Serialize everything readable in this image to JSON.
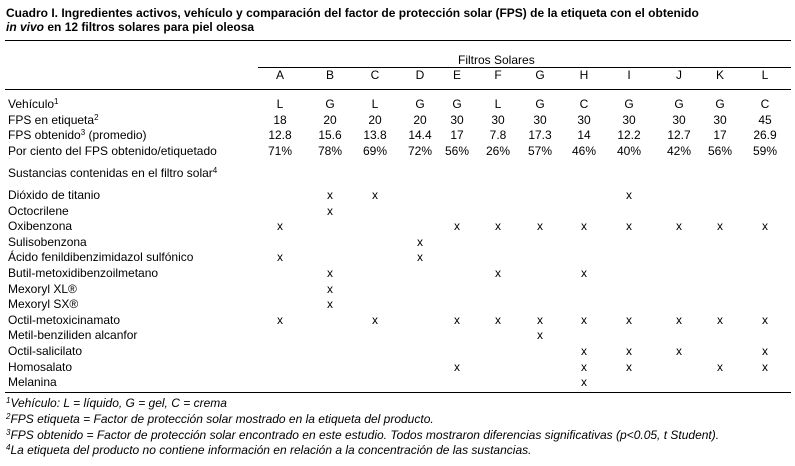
{
  "caption": {
    "line1": "Cuadro I. Ingredientes activos, vehículo y comparación del factor de protección solar (FPS) de la etiqueta con el obtenido",
    "line2_italic": "in vivo",
    "line2_rest": " en 12 filtros solares para piel oleosa"
  },
  "table": {
    "group_header": "Filtros Solares",
    "columns": [
      "A",
      "B",
      "C",
      "D",
      "E",
      "F",
      "G",
      "H",
      "I",
      "J",
      "K",
      "L"
    ],
    "data_rows": [
      {
        "label": "Vehículo",
        "sup": "1",
        "values": [
          "L",
          "G",
          "L",
          "G",
          "G",
          "L",
          "G",
          "C",
          "G",
          "G",
          "G",
          "C"
        ]
      },
      {
        "label": "FPS en etiqueta",
        "sup": "2",
        "values": [
          "18",
          "20",
          "20",
          "20",
          "30",
          "30",
          "30",
          "30",
          "30",
          "30",
          "30",
          "45"
        ]
      },
      {
        "label": "FPS obtenido",
        "sup": "3",
        "label_suffix": " (promedio)",
        "values": [
          "12.8",
          "15.6",
          "13.8",
          "14.4",
          "17",
          "7.8",
          "17.3",
          "14",
          "12.2",
          "12.7",
          "17",
          "26.9"
        ]
      },
      {
        "label": "Por ciento del FPS obtenido/etiquetado",
        "sup": "",
        "values": [
          "71%",
          "78%",
          "69%",
          "72%",
          "56%",
          "26%",
          "57%",
          "46%",
          "40%",
          "42%",
          "56%",
          "59%"
        ]
      }
    ],
    "substances_header": {
      "label": "Sustancias contenidas en el filtro solar",
      "sup": "4"
    },
    "mark": "x",
    "substances": [
      {
        "name": "Dióxido de titanio",
        "cols": [
          "B",
          "C",
          "I"
        ]
      },
      {
        "name": "Octocrilene",
        "cols": [
          "B"
        ]
      },
      {
        "name": "Oxibenzona",
        "cols": [
          "A",
          "E",
          "F",
          "G",
          "H",
          "I",
          "J",
          "K",
          "L"
        ]
      },
      {
        "name": "Sulisobenzona",
        "cols": [
          "D"
        ]
      },
      {
        "name": "Ácido fenildibenzimidazol sulfónico",
        "cols": [
          "A",
          "D"
        ]
      },
      {
        "name": "Butil-metoxidibenzoilmetano",
        "cols": [
          "B",
          "F",
          "H"
        ]
      },
      {
        "name": "Mexoryl XL®",
        "cols": [
          "B"
        ]
      },
      {
        "name": "Mexoryl SX®",
        "cols": [
          "B"
        ]
      },
      {
        "name": "Octil-metoxicinamato",
        "cols": [
          "A",
          "C",
          "E",
          "F",
          "G",
          "H",
          "I",
          "J",
          "K",
          "L"
        ]
      },
      {
        "name": "Metil-benziliden alcanfor",
        "cols": [
          "G"
        ]
      },
      {
        "name": "Octil-salicilato",
        "cols": [
          "H",
          "I",
          "J",
          "L"
        ]
      },
      {
        "name": "Homosalato",
        "cols": [
          "E",
          "H",
          "I",
          "K",
          "L"
        ]
      },
      {
        "name": "Melanina",
        "cols": [
          "H"
        ]
      }
    ]
  },
  "footnotes": [
    {
      "sup": "1",
      "text": "Vehículo: L = líquido, G = gel, C = crema"
    },
    {
      "sup": "2",
      "text": "FPS etiqueta = Factor de protección solar mostrado en la etiqueta del producto."
    },
    {
      "sup": "3",
      "text": "FPS obtenido = Factor de protección solar encontrado en este estudio. Todos mostraron diferencias significativas (p<0.05, t Student)."
    },
    {
      "sup": "4",
      "text": "La etiqueta del producto no contiene información en relación a la concentración de las sustancias."
    }
  ]
}
